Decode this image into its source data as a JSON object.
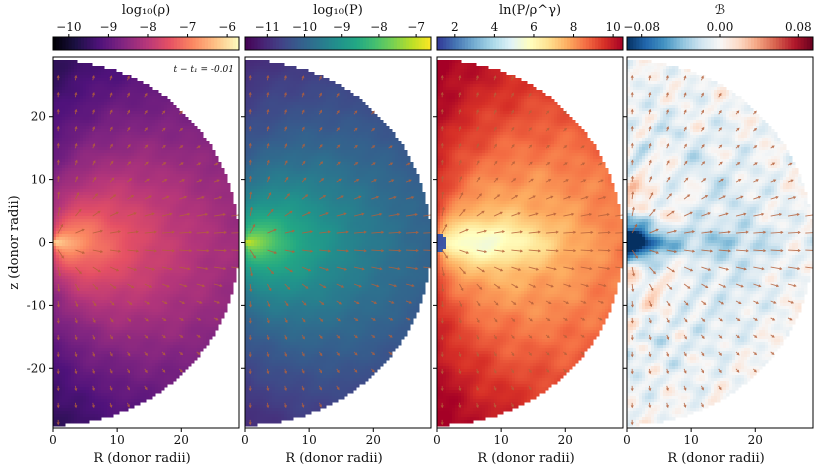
{
  "chart_data": {
    "type": "heatmap",
    "annotation": "t − t₁ = -0.01",
    "xlabel": "R (donor radii)",
    "ylabel": "z (donor radii)",
    "xlim": [
      0,
      29
    ],
    "ylim": [
      -29.5,
      29.5
    ],
    "domain_radius": 29,
    "x_ticks": [
      0,
      10,
      20
    ],
    "y_ticks": [
      20,
      10,
      0,
      -10,
      -20
    ],
    "panels": [
      {
        "id": "log10-rho",
        "colorbar_label": "log₁₀(ρ)",
        "colormap": "magma",
        "clim": [
          -10.4,
          -5.7
        ],
        "colorbar_ticks": [
          -10,
          -9,
          -8,
          -7,
          -6
        ],
        "colorbar_tick_labels": [
          "−10",
          "−9",
          "−8",
          "−7",
          "−6"
        ],
        "show_y_axis_labels": true
      },
      {
        "id": "log10-p",
        "colorbar_label": "log₁₀(P)",
        "colormap": "viridis",
        "clim": [
          -11.6,
          -6.6
        ],
        "colorbar_ticks": [
          -11,
          -10,
          -9,
          -8,
          -7
        ],
        "colorbar_tick_labels": [
          "−11",
          "−10",
          "−9",
          "−8",
          "−7"
        ],
        "show_y_axis_labels": false
      },
      {
        "id": "entropy",
        "colorbar_label": "ln(P/ρ^γ)",
        "colormap": "RdYlBu_r",
        "clim": [
          1.1,
          10.5
        ],
        "colorbar_ticks": [
          2,
          4,
          6,
          8,
          10
        ],
        "colorbar_tick_labels": [
          "2",
          "4",
          "6",
          "8",
          "10"
        ],
        "show_y_axis_labels": false
      },
      {
        "id": "bernoulli",
        "colorbar_label": "ℬ",
        "colormap": "RdBu_r",
        "clim": [
          -0.095,
          0.095
        ],
        "colorbar_ticks": [
          -0.08,
          0,
          0.08
        ],
        "colorbar_tick_labels": [
          "−0.08",
          "0.00",
          "0.08"
        ],
        "show_y_axis_labels": false
      }
    ],
    "velocity_arrows": {
      "color": "#b5603a",
      "flow_direction": "radially outward from origin",
      "grid_spacing_donor_radii": 2.7
    }
  },
  "colors": {
    "arrow": "#b5603a",
    "axes_frame": "#000000",
    "background": "#ffffff"
  }
}
